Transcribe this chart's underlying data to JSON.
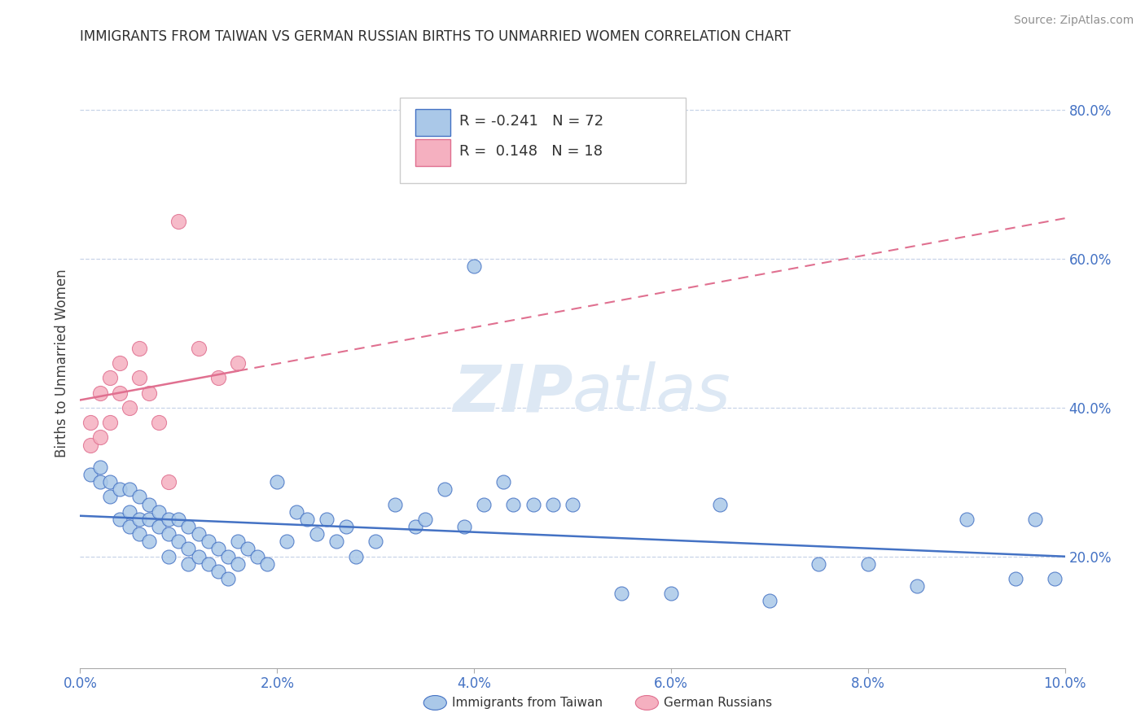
{
  "title": "IMMIGRANTS FROM TAIWAN VS GERMAN RUSSIAN BIRTHS TO UNMARRIED WOMEN CORRELATION CHART",
  "source": "Source: ZipAtlas.com",
  "ylabel": "Births to Unmarried Women",
  "xlabel_blue": "Immigrants from Taiwan",
  "xlabel_pink": "German Russians",
  "xmin": 0.0,
  "xmax": 0.1,
  "ymin": 0.05,
  "ymax": 0.87,
  "yticks": [
    0.2,
    0.4,
    0.6,
    0.8
  ],
  "ytick_labels": [
    "20.0%",
    "40.0%",
    "60.0%",
    "80.0%"
  ],
  "xticks": [
    0.0,
    0.02,
    0.04,
    0.06,
    0.08,
    0.1
  ],
  "xtick_labels": [
    "0.0%",
    "2.0%",
    "4.0%",
    "6.0%",
    "8.0%",
    "10.0%"
  ],
  "blue_R": -0.241,
  "blue_N": 72,
  "pink_R": 0.148,
  "pink_N": 18,
  "blue_color": "#aac8e8",
  "pink_color": "#f5b0c0",
  "blue_line_color": "#4472c4",
  "pink_line_color": "#e07090",
  "grid_color": "#c8d4e8",
  "title_color": "#303030",
  "source_color": "#909090",
  "watermark_color": "#dde8f4",
  "blue_x": [
    0.001,
    0.002,
    0.002,
    0.003,
    0.003,
    0.004,
    0.004,
    0.005,
    0.005,
    0.005,
    0.006,
    0.006,
    0.006,
    0.007,
    0.007,
    0.007,
    0.008,
    0.008,
    0.009,
    0.009,
    0.009,
    0.01,
    0.01,
    0.011,
    0.011,
    0.011,
    0.012,
    0.012,
    0.013,
    0.013,
    0.014,
    0.014,
    0.015,
    0.015,
    0.016,
    0.016,
    0.017,
    0.018,
    0.019,
    0.02,
    0.021,
    0.022,
    0.023,
    0.024,
    0.025,
    0.026,
    0.027,
    0.028,
    0.03,
    0.032,
    0.034,
    0.035,
    0.037,
    0.039,
    0.04,
    0.041,
    0.043,
    0.044,
    0.046,
    0.048,
    0.05,
    0.055,
    0.06,
    0.065,
    0.07,
    0.075,
    0.08,
    0.085,
    0.09,
    0.095,
    0.097,
    0.099
  ],
  "blue_y": [
    0.31,
    0.3,
    0.32,
    0.28,
    0.3,
    0.29,
    0.25,
    0.29,
    0.26,
    0.24,
    0.28,
    0.25,
    0.23,
    0.27,
    0.25,
    0.22,
    0.26,
    0.24,
    0.25,
    0.23,
    0.2,
    0.25,
    0.22,
    0.24,
    0.21,
    0.19,
    0.23,
    0.2,
    0.22,
    0.19,
    0.21,
    0.18,
    0.2,
    0.17,
    0.22,
    0.19,
    0.21,
    0.2,
    0.19,
    0.3,
    0.22,
    0.26,
    0.25,
    0.23,
    0.25,
    0.22,
    0.24,
    0.2,
    0.22,
    0.27,
    0.24,
    0.25,
    0.29,
    0.24,
    0.59,
    0.27,
    0.3,
    0.27,
    0.27,
    0.27,
    0.27,
    0.15,
    0.15,
    0.27,
    0.14,
    0.19,
    0.19,
    0.16,
    0.25,
    0.17,
    0.25,
    0.17
  ],
  "pink_x": [
    0.001,
    0.001,
    0.002,
    0.002,
    0.003,
    0.003,
    0.004,
    0.004,
    0.005,
    0.006,
    0.006,
    0.007,
    0.008,
    0.009,
    0.01,
    0.012,
    0.014,
    0.016
  ],
  "pink_y": [
    0.38,
    0.35,
    0.42,
    0.36,
    0.44,
    0.38,
    0.42,
    0.46,
    0.4,
    0.44,
    0.48,
    0.42,
    0.38,
    0.3,
    0.65,
    0.48,
    0.44,
    0.46
  ],
  "pink_trend_xmax": 0.1,
  "blue_trend_intercept": 0.265,
  "blue_trend_slope": -0.8,
  "pink_trend_intercept": 0.375,
  "pink_trend_slope": 3.5
}
